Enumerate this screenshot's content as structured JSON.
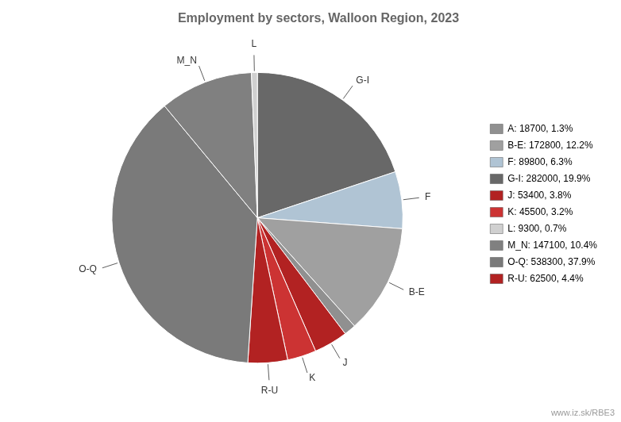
{
  "chart_data": {
    "type": "pie",
    "title": "Employment by sectors, Walloon Region, 2023",
    "categories": [
      "G-I",
      "F",
      "B-E",
      null,
      "J",
      "K",
      "R-U",
      "O-Q",
      "M_N",
      "L"
    ],
    "values": [
      282000,
      89800,
      172800,
      18700,
      53400,
      45500,
      62500,
      538300,
      147100,
      9300
    ],
    "colors": [
      "#686868",
      "#b0c4d4",
      "#a0a0a0",
      "#909090",
      "#b22222",
      "#cc3333",
      "#b22222",
      "#7a7a7a",
      "#808080",
      "#d0d0d0"
    ],
    "legend": "right",
    "legend_labels": [
      "A: 18700, 1.3%",
      "B-E: 172800, 12.2%",
      "F: 89800, 6.3%",
      "G-I: 282000, 19.9%",
      "J: 53400, 3.8%",
      "K: 45500, 3.2%",
      "L: 9300, 0.7%",
      "M_N: 147100, 10.4%",
      "O-Q: 538300, 37.9%",
      "R-U: 62500, 4.4%"
    ],
    "legend_colors": [
      "#909090",
      "#a0a0a0",
      "#b0c4d4",
      "#686868",
      "#b22222",
      "#cc3333",
      "#d0d0d0",
      "#808080",
      "#7a7a7a",
      "#b22222"
    ],
    "annotations": [
      "www.iz.sk/RBE3"
    ]
  }
}
